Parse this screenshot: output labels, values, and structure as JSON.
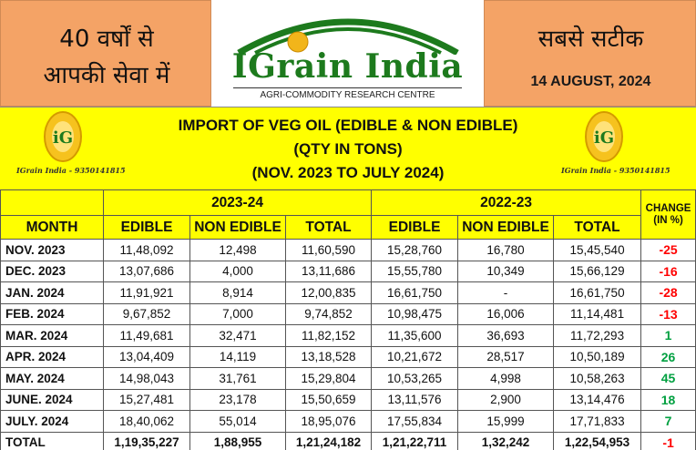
{
  "header": {
    "left_line1": "40 वर्षों से",
    "left_line2": "आपकी सेवा में",
    "right_title": "सबसे सटीक",
    "date": "14 AUGUST, 2024",
    "logo_title": "IGrain India",
    "logo_subtitle": "AGRI-COMMODITY RESEARCH CENTRE",
    "logo_badge": "iG"
  },
  "title": {
    "line1": "IMPORT OF VEG OIL (EDIBLE & NON EDIBLE)",
    "line2": "(QTY IN TONS)",
    "line3": "(NOV. 2023 TO JULY 2024)",
    "contact_left": "IGrain India - 9350141815",
    "contact_right": "IGrain India - 9350141815"
  },
  "table": {
    "period_a": "2023-24",
    "period_b": "2022-23",
    "change_header": "CHANGE (IN %)",
    "columns": [
      "MONTH",
      "EDIBLE",
      "NON EDIBLE",
      "TOTAL",
      "EDIBLE",
      "NON EDIBLE",
      "TOTAL"
    ],
    "rows": [
      {
        "month": "NOV. 2023",
        "a_edible": "11,48,092",
        "a_nonedible": "12,498",
        "a_total": "11,60,590",
        "b_edible": "15,28,760",
        "b_nonedible": "16,780",
        "b_total": "15,45,540",
        "change": "-25"
      },
      {
        "month": "DEC. 2023",
        "a_edible": "13,07,686",
        "a_nonedible": "4,000",
        "a_total": "13,11,686",
        "b_edible": "15,55,780",
        "b_nonedible": "10,349",
        "b_total": "15,66,129",
        "change": "-16"
      },
      {
        "month": "JAN. 2024",
        "a_edible": "11,91,921",
        "a_nonedible": "8,914",
        "a_total": "12,00,835",
        "b_edible": "16,61,750",
        "b_nonedible": "-",
        "b_total": "16,61,750",
        "change": "-28"
      },
      {
        "month": "FEB. 2024",
        "a_edible": "9,67,852",
        "a_nonedible": "7,000",
        "a_total": "9,74,852",
        "b_edible": "10,98,475",
        "b_nonedible": "16,006",
        "b_total": "11,14,481",
        "change": "-13"
      },
      {
        "month": "MAR. 2024",
        "a_edible": "11,49,681",
        "a_nonedible": "32,471",
        "a_total": "11,82,152",
        "b_edible": "11,35,600",
        "b_nonedible": "36,693",
        "b_total": "11,72,293",
        "change": "1"
      },
      {
        "month": "APR. 2024",
        "a_edible": "13,04,409",
        "a_nonedible": "14,119",
        "a_total": "13,18,528",
        "b_edible": "10,21,672",
        "b_nonedible": "28,517",
        "b_total": "10,50,189",
        "change": "26"
      },
      {
        "month": "MAY. 2024",
        "a_edible": "14,98,043",
        "a_nonedible": "31,761",
        "a_total": "15,29,804",
        "b_edible": "10,53,265",
        "b_nonedible": "4,998",
        "b_total": "10,58,263",
        "change": "45"
      },
      {
        "month": "JUNE. 2024",
        "a_edible": "15,27,481",
        "a_nonedible": "23,178",
        "a_total": "15,50,659",
        "b_edible": "13,11,576",
        "b_nonedible": "2,900",
        "b_total": "13,14,476",
        "change": "18"
      },
      {
        "month": "JULY. 2024",
        "a_edible": "18,40,062",
        "a_nonedible": "55,014",
        "a_total": "18,95,076",
        "b_edible": "17,55,834",
        "b_nonedible": "15,999",
        "b_total": "17,71,833",
        "change": "7"
      }
    ],
    "total": {
      "month": "TOTAL",
      "a_edible": "1,19,35,227",
      "a_nonedible": "1,88,955",
      "a_total": "1,21,24,182",
      "b_edible": "1,21,22,711",
      "b_nonedible": "1,32,242",
      "b_total": "1,22,54,953",
      "change": "-1"
    }
  },
  "colors": {
    "header_orange": "#f4a366",
    "band_yellow": "#ffff00",
    "logo_green": "#1d7a1d",
    "negative": "#ff0000",
    "positive": "#00a040"
  }
}
